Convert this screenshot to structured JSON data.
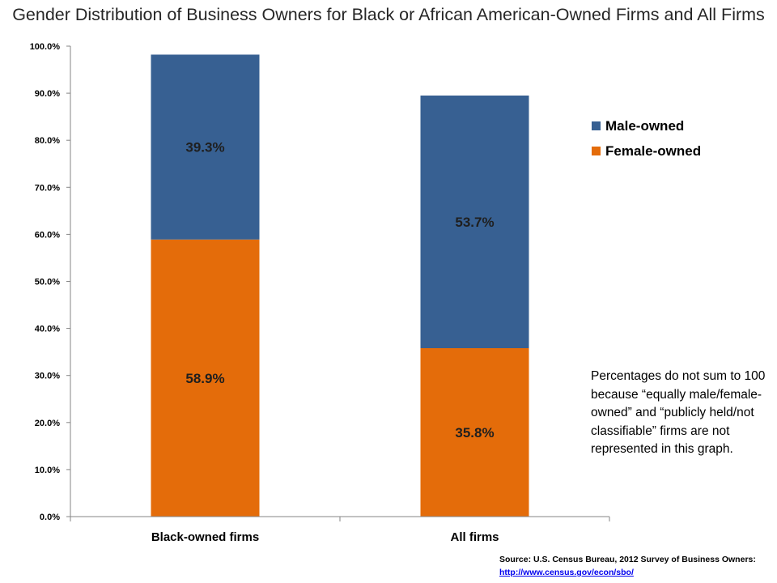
{
  "chart_data": {
    "type": "bar",
    "stacked": true,
    "title": "Gender Distribution of Business Owners for Black or African American-Owned Firms and All Firms",
    "categories": [
      "Black-owned firms",
      "All firms"
    ],
    "series": [
      {
        "name": "Female-owned",
        "values": [
          58.9,
          35.8
        ],
        "labels": [
          "58.9%",
          "35.8%"
        ],
        "color": "#e46c0a"
      },
      {
        "name": "Male-owned",
        "values": [
          39.3,
          53.7
        ],
        "labels": [
          "39.3%",
          "53.7%"
        ],
        "color": "#376092"
      }
    ],
    "ylim": [
      0,
      100
    ],
    "yticks": [
      "0.0%",
      "10.0%",
      "20.0%",
      "30.0%",
      "40.0%",
      "50.0%",
      "60.0%",
      "70.0%",
      "80.0%",
      "90.0%",
      "100.0%"
    ],
    "xlabel": "",
    "ylabel": "",
    "grid": false,
    "legend_position": "right",
    "legend": [
      "Male-owned",
      "Female-owned"
    ],
    "note": "Percentages do not sum to 100 because “equally male/female-owned” and “publicly held/not classifiable” firms are not represented in this graph."
  },
  "source": {
    "text": "Source: U.S. Census Bureau, 2012 Survey of Business Owners:",
    "link": "http://www.census.gov/econ/sbo/"
  }
}
